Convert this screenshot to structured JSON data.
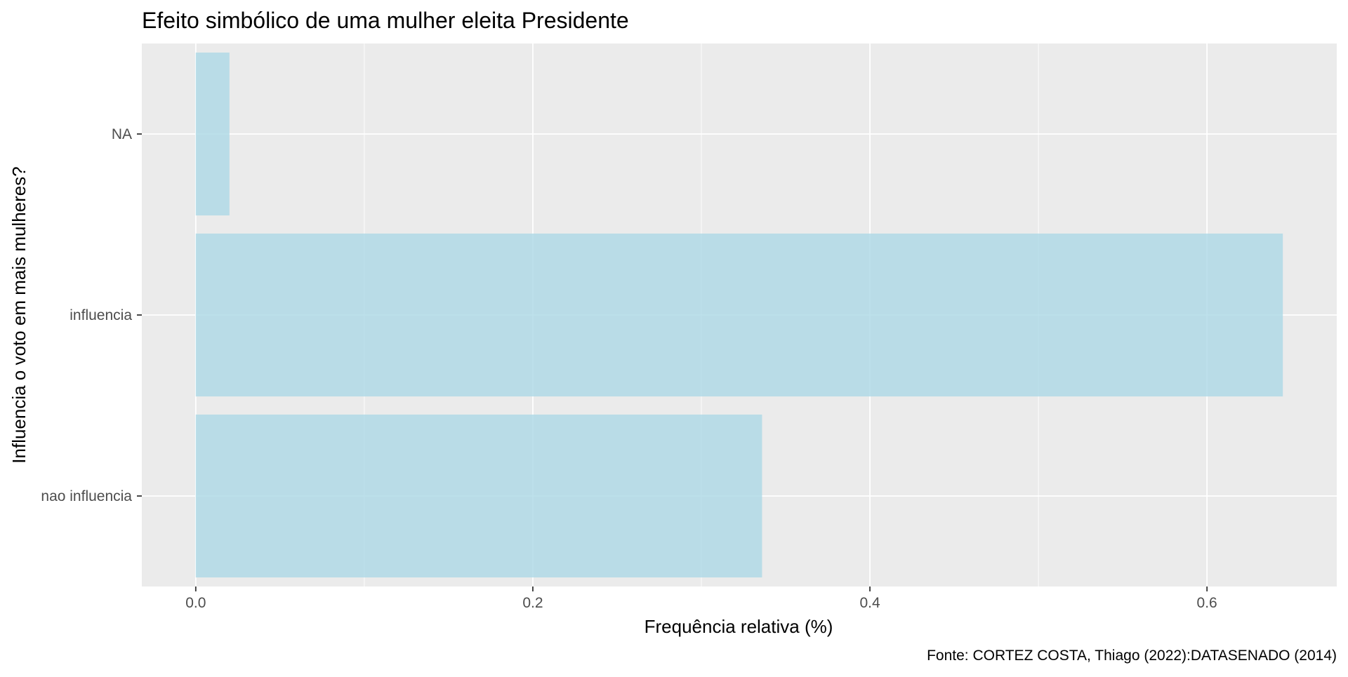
{
  "chart_data": {
    "type": "bar",
    "orientation": "horizontal",
    "title": "Efeito simbólico de uma mulher eleita Presidente",
    "xlabel": "Frequência relativa (%)",
    "ylabel": "Influencia o voto em mais mulheres?",
    "caption": "Fonte: CORTEZ COSTA, Thiago (2022):DATASENADO (2014)",
    "categories": [
      "NA",
      "influencia",
      "nao influencia"
    ],
    "values": [
      0.02,
      0.645,
      0.336
    ],
    "xlim": [
      -0.032,
      0.677
    ],
    "xticks": [
      0.0,
      0.2,
      0.4,
      0.6
    ],
    "xtick_labels": [
      "0.0",
      "0.2",
      "0.4",
      "0.6"
    ],
    "grid": true,
    "colors": {
      "bar": "#add8e6",
      "panel_background": "#ebebeb",
      "grid": "#ffffff",
      "tick_text": "#4d4d4d",
      "tick_mark": "#333333"
    }
  }
}
